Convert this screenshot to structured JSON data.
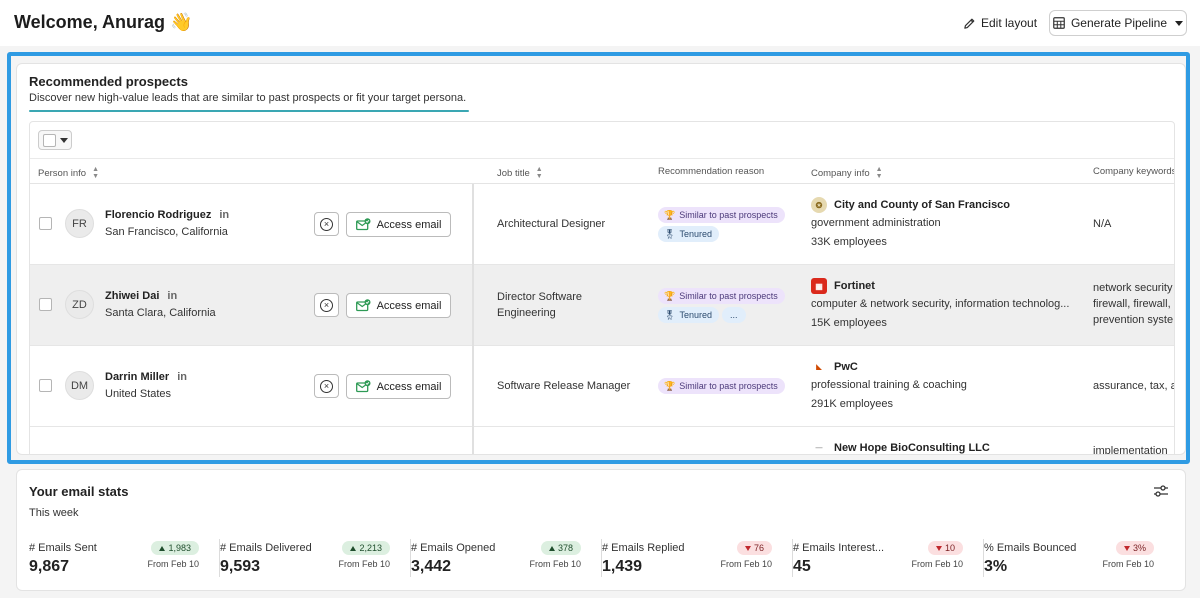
{
  "header": {
    "welcome": "Welcome, Anurag 👋",
    "edit_layout": "Edit layout",
    "generate_pipeline": "Generate Pipeline"
  },
  "recommended": {
    "title": "Recommended prospects",
    "subtitle": "Discover new high-value leads that are similar to past prospects or fit your target persona.",
    "columns": {
      "person_info": "Person info",
      "job_title": "Job title",
      "reason": "Recommendation reason",
      "company_info": "Company info",
      "keywords": "Company keywords"
    },
    "access_label": "Access email",
    "rows": [
      {
        "initials": "FR",
        "name": "Florencio Rodriguez",
        "linkedin": "in",
        "location": "San Francisco, California",
        "job": "Architectural Designer",
        "tags": [
          "Similar to past prospects",
          "Tenured"
        ],
        "company": "City and County of San Francisco",
        "industry": "government administration",
        "employees": "33K employees",
        "keywords": "N/A",
        "logo_color": "#8a6a1e"
      },
      {
        "initials": "ZD",
        "name": "Zhiwei Dai",
        "linkedin": "in",
        "location": "Santa Clara, California",
        "job": "Director Software Engineering",
        "tags": [
          "Similar to past prospects",
          "Tenured",
          "..."
        ],
        "company": "Fortinet",
        "industry": "computer & network security, information technolog...",
        "employees": "15K employees",
        "keywords": "network security\nfirewall, firewall,\nprevention syste",
        "logo_color": "#da291c"
      },
      {
        "initials": "DM",
        "name": "Darrin Miller",
        "linkedin": "in",
        "location": "United States",
        "job": "Software Release Manager",
        "tags": [
          "Similar to past prospects"
        ],
        "company": "PwC",
        "industry": "professional training & coaching",
        "employees": "291K employees",
        "keywords": "assurance, tax, a",
        "logo_color": "#d04a02"
      },
      {
        "company": "New Hope BioConsulting LLC",
        "keywords": "implementation"
      }
    ]
  },
  "stats": {
    "title": "Your email stats",
    "period": "This week",
    "items": [
      {
        "label": "# Emails Sent",
        "value": "9,867",
        "delta": "1,983",
        "direction": "up",
        "from": "From Feb 10"
      },
      {
        "label": "# Emails Delivered",
        "value": "9,593",
        "delta": "2,213",
        "direction": "up",
        "from": "From Feb 10"
      },
      {
        "label": "# Emails Opened",
        "value": "3,442",
        "delta": "378",
        "direction": "up",
        "from": "From Feb 10"
      },
      {
        "label": "# Emails Replied",
        "value": "1,439",
        "delta": "76",
        "direction": "down",
        "from": "From Feb 10"
      },
      {
        "label": "# Emails Interest...",
        "value": "45",
        "delta": "10",
        "direction": "down",
        "from": "From Feb 10"
      },
      {
        "label": "% Emails Bounced",
        "value": "3%",
        "delta": "3%",
        "direction": "down",
        "from": "From Feb 10"
      }
    ]
  },
  "colors": {
    "highlight": "#2f9be3",
    "tag_similar_bg": "#ede3fb",
    "tag_tenured_bg": "#e1eefb",
    "delta_up_bg": "#dcefe0",
    "delta_down_bg": "#fbdfe0"
  },
  "icons": {
    "edit": "pencil-icon",
    "pipeline": "table-grid-icon",
    "dismiss": "x-circle-icon",
    "access": "envelope-check-icon",
    "reason_similar": "trophy-icon",
    "reason_tenured": "badge-icon",
    "stats_settings": "sliders-icon"
  }
}
